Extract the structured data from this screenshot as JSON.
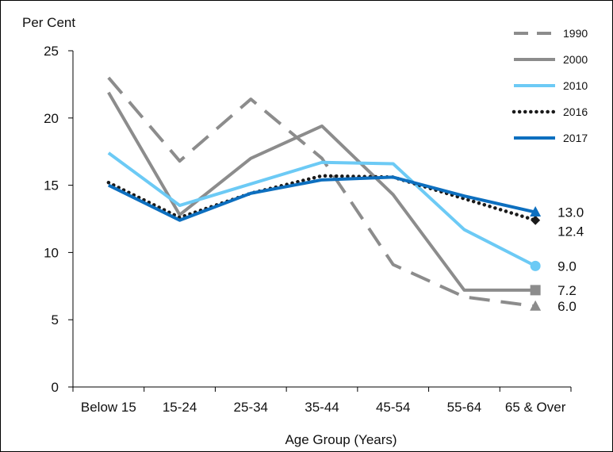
{
  "chart_data": {
    "type": "line",
    "ylabel": "Per Cent",
    "xlabel": "Age Group (Years)",
    "ylim": [
      0,
      25
    ],
    "yticks": [
      0,
      5,
      10,
      15,
      20,
      25
    ],
    "categories": [
      "Below 15",
      "15-24",
      "25-34",
      "35-44",
      "45-54",
      "55-64",
      "65 & Over"
    ],
    "grid": false,
    "legend_position": "top-right",
    "series": [
      {
        "name": "1990",
        "style": "dashed",
        "color": "#8c8c8c",
        "marker": "triangle",
        "end_label": "6.0",
        "values": [
          23.0,
          16.8,
          21.4,
          17.0,
          9.1,
          6.7,
          6.0
        ]
      },
      {
        "name": "2000",
        "style": "solid",
        "color": "#8c8c8c",
        "marker": "square",
        "end_label": "7.2",
        "values": [
          21.9,
          12.8,
          17.0,
          19.4,
          14.3,
          7.2,
          7.2
        ]
      },
      {
        "name": "2010",
        "style": "solid",
        "color": "#6ccaf5",
        "marker": "circle",
        "end_label": "9.0",
        "values": [
          17.4,
          13.5,
          15.1,
          16.7,
          16.6,
          11.7,
          9.0
        ]
      },
      {
        "name": "2016",
        "style": "dotted",
        "color": "#1a1a1a",
        "marker": "diamond",
        "end_label": "12.4",
        "values": [
          15.2,
          12.6,
          14.4,
          15.7,
          15.6,
          14.0,
          12.4
        ]
      },
      {
        "name": "2017",
        "style": "solid",
        "color": "#0d6fbf",
        "marker": "triangle",
        "end_label": "13.0",
        "values": [
          15.0,
          12.4,
          14.4,
          15.4,
          15.6,
          14.2,
          13.0
        ]
      }
    ]
  }
}
